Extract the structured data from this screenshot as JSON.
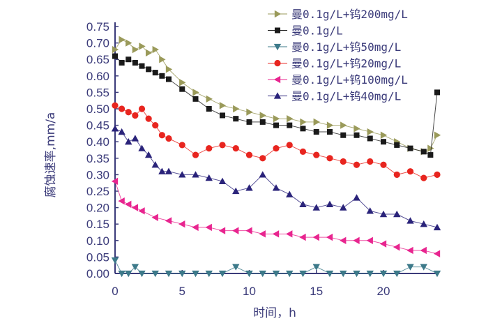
{
  "chart_data": {
    "type": "line",
    "xlabel": "时间，h",
    "ylabel": "腐蚀速率,mm/a",
    "xlim": [
      0,
      24
    ],
    "ylim": [
      0,
      0.75
    ],
    "xticks": [
      "0",
      "5",
      "10",
      "15",
      "20"
    ],
    "yticks": [
      "0.00",
      "0.05",
      "0.10",
      "0.15",
      "0.20",
      "0.25",
      "0.30",
      "0.35",
      "0.40",
      "0.45",
      "0.50",
      "0.55",
      "0.60",
      "0.65",
      "0.70",
      "0.75"
    ],
    "grid": false,
    "legend_position": "top-right",
    "series": [
      {
        "name": "曼0.1g/L+钨200mg/L",
        "color": "#9a9a5a",
        "marker": "triangle-right",
        "x": [
          0,
          0.5,
          1,
          1.5,
          2,
          2.5,
          3,
          3.5,
          4,
          5,
          6,
          7,
          8,
          9,
          10,
          11,
          12,
          13,
          14,
          15,
          16,
          17,
          18,
          19,
          20,
          21,
          22,
          23,
          23.5,
          24
        ],
        "y": [
          0.68,
          0.71,
          0.7,
          0.68,
          0.69,
          0.67,
          0.68,
          0.65,
          0.62,
          0.58,
          0.55,
          0.53,
          0.51,
          0.5,
          0.49,
          0.48,
          0.47,
          0.47,
          0.46,
          0.46,
          0.45,
          0.45,
          0.44,
          0.43,
          0.42,
          0.4,
          0.38,
          0.37,
          0.38,
          0.42
        ]
      },
      {
        "name": "曼0.1g/L",
        "color": "#1a1a1a",
        "marker": "square",
        "x": [
          0,
          0.5,
          1,
          1.5,
          2,
          2.5,
          3,
          3.5,
          4,
          5,
          6,
          7,
          8,
          9,
          10,
          11,
          12,
          13,
          14,
          15,
          16,
          17,
          18,
          19,
          20,
          21,
          22,
          23,
          23.5,
          24
        ],
        "y": [
          0.66,
          0.64,
          0.65,
          0.64,
          0.63,
          0.62,
          0.61,
          0.6,
          0.59,
          0.56,
          0.53,
          0.5,
          0.48,
          0.47,
          0.46,
          0.46,
          0.45,
          0.45,
          0.44,
          0.43,
          0.43,
          0.42,
          0.42,
          0.41,
          0.4,
          0.39,
          0.38,
          0.37,
          0.36,
          0.55
        ]
      },
      {
        "name": "曼0.1g/L+钨50mg/L",
        "color": "#3d7a8a",
        "marker": "triangle-down",
        "x": [
          0,
          0.5,
          1,
          1.5,
          2,
          3,
          4,
          5,
          6,
          7,
          8,
          9,
          10,
          11,
          12,
          13,
          14,
          15,
          16,
          17,
          18,
          19,
          20,
          21,
          22,
          23,
          24
        ],
        "y": [
          0.04,
          0.0,
          0.0,
          0.02,
          0.0,
          0.0,
          0.0,
          0.0,
          0.0,
          0.0,
          0.0,
          0.02,
          0.0,
          0.0,
          0.0,
          0.0,
          0.0,
          0.02,
          0.0,
          0.0,
          0.0,
          0.0,
          0.0,
          0.0,
          0.02,
          0.02,
          0.0
        ]
      },
      {
        "name": "曼0.1g/L+钨20mg/L",
        "color": "#e8251f",
        "marker": "circle",
        "x": [
          0,
          0.5,
          1,
          1.5,
          2,
          2.5,
          3,
          3.5,
          4,
          5,
          6,
          7,
          8,
          9,
          10,
          11,
          12,
          13,
          14,
          15,
          16,
          17,
          18,
          19,
          20,
          21,
          22,
          23,
          24
        ],
        "y": [
          0.51,
          0.5,
          0.49,
          0.48,
          0.5,
          0.47,
          0.45,
          0.42,
          0.41,
          0.39,
          0.36,
          0.38,
          0.39,
          0.38,
          0.36,
          0.35,
          0.38,
          0.39,
          0.37,
          0.36,
          0.35,
          0.34,
          0.33,
          0.34,
          0.33,
          0.3,
          0.31,
          0.29,
          0.3
        ]
      },
      {
        "name": "曼0.1g/L+钨100mg/L",
        "color": "#e8258f",
        "marker": "triangle-left",
        "x": [
          0,
          0.5,
          1,
          1.5,
          2,
          3,
          4,
          5,
          6,
          7,
          8,
          9,
          10,
          11,
          12,
          13,
          14,
          15,
          16,
          17,
          18,
          19,
          20,
          21,
          22,
          23,
          24
        ],
        "y": [
          0.28,
          0.22,
          0.21,
          0.2,
          0.19,
          0.17,
          0.16,
          0.15,
          0.14,
          0.14,
          0.13,
          0.13,
          0.13,
          0.12,
          0.12,
          0.12,
          0.11,
          0.11,
          0.11,
          0.1,
          0.1,
          0.1,
          0.09,
          0.08,
          0.07,
          0.07,
          0.06
        ]
      },
      {
        "name": "曼0.1g/L+钨40mg/L",
        "color": "#2a237a",
        "marker": "triangle-up",
        "x": [
          0,
          0.5,
          1,
          1.5,
          2,
          2.5,
          3,
          3.5,
          4,
          5,
          6,
          7,
          8,
          9,
          10,
          11,
          12,
          13,
          14,
          15,
          16,
          17,
          18,
          19,
          20,
          21,
          22,
          23,
          24
        ],
        "y": [
          0.44,
          0.43,
          0.4,
          0.41,
          0.38,
          0.36,
          0.33,
          0.31,
          0.31,
          0.3,
          0.3,
          0.29,
          0.28,
          0.25,
          0.26,
          0.3,
          0.26,
          0.24,
          0.21,
          0.2,
          0.21,
          0.2,
          0.23,
          0.19,
          0.18,
          0.18,
          0.16,
          0.15,
          0.14
        ]
      }
    ]
  }
}
